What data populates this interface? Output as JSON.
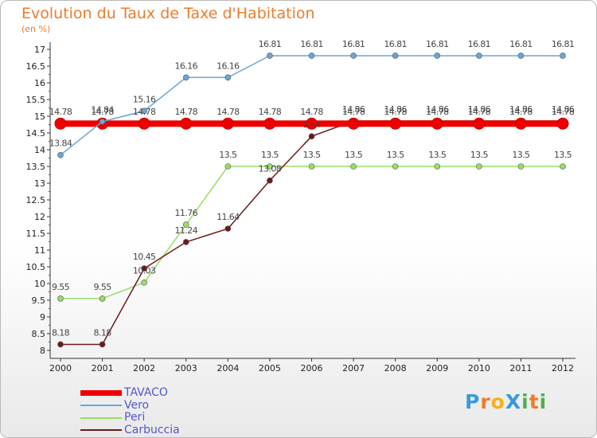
{
  "title": "Evolution du Taux de Taxe d'Habitation",
  "unit_label": "(en %)",
  "logo": {
    "text": "Proxiti",
    "letters": [
      {
        "ch": "P",
        "color": "#3a9ad9"
      },
      {
        "ch": "r",
        "color": "#f07a2b"
      },
      {
        "ch": "o",
        "color": "#f2b01e"
      },
      {
        "ch": "X",
        "color": "#3a9ad9"
      },
      {
        "ch": "i",
        "color": "#4caf50"
      },
      {
        "ch": "t",
        "color": "#f07a2b"
      },
      {
        "ch": "i",
        "color": "#4caf50"
      }
    ]
  },
  "chart_data": {
    "type": "line",
    "x": [
      2000,
      2001,
      2002,
      2003,
      2004,
      2005,
      2006,
      2007,
      2008,
      2009,
      2010,
      2011,
      2012
    ],
    "y_ticks": [
      "8",
      "8.5",
      "9",
      "9.5",
      "10",
      "10.5",
      "11",
      "11.5",
      "12",
      "12.5",
      "13",
      "13.5",
      "14",
      "14.5",
      "15",
      "15.5",
      "16",
      "16.5",
      "17"
    ],
    "ylim": [
      8,
      17
    ],
    "grid": false,
    "legend_position": "bottom-left",
    "series": [
      {
        "name": "TAVACO",
        "color": "#ee0000",
        "values": [
          14.78,
          14.78,
          14.78,
          14.78,
          14.78,
          14.78,
          14.78,
          14.78,
          14.78,
          14.78,
          14.78,
          14.78,
          14.78
        ]
      },
      {
        "name": "Vero",
        "color": "#6aa6d6",
        "values": [
          13.84,
          14.84,
          15.16,
          16.16,
          16.16,
          16.81,
          16.81,
          16.81,
          16.81,
          16.81,
          16.81,
          16.81,
          16.81
        ]
      },
      {
        "name": "Peri",
        "color": "#99dd66",
        "values": [
          9.55,
          9.55,
          10.03,
          11.76,
          13.5,
          13.5,
          13.5,
          13.5,
          13.5,
          13.5,
          13.5,
          13.5,
          13.5
        ]
      },
      {
        "name": "Carbuccia",
        "color": "#6b1a1a",
        "values": [
          8.18,
          8.18,
          10.45,
          11.24,
          11.64,
          13.08,
          14.4,
          14.86,
          14.86,
          14.86,
          14.86,
          14.86,
          14.86
        ]
      }
    ]
  }
}
